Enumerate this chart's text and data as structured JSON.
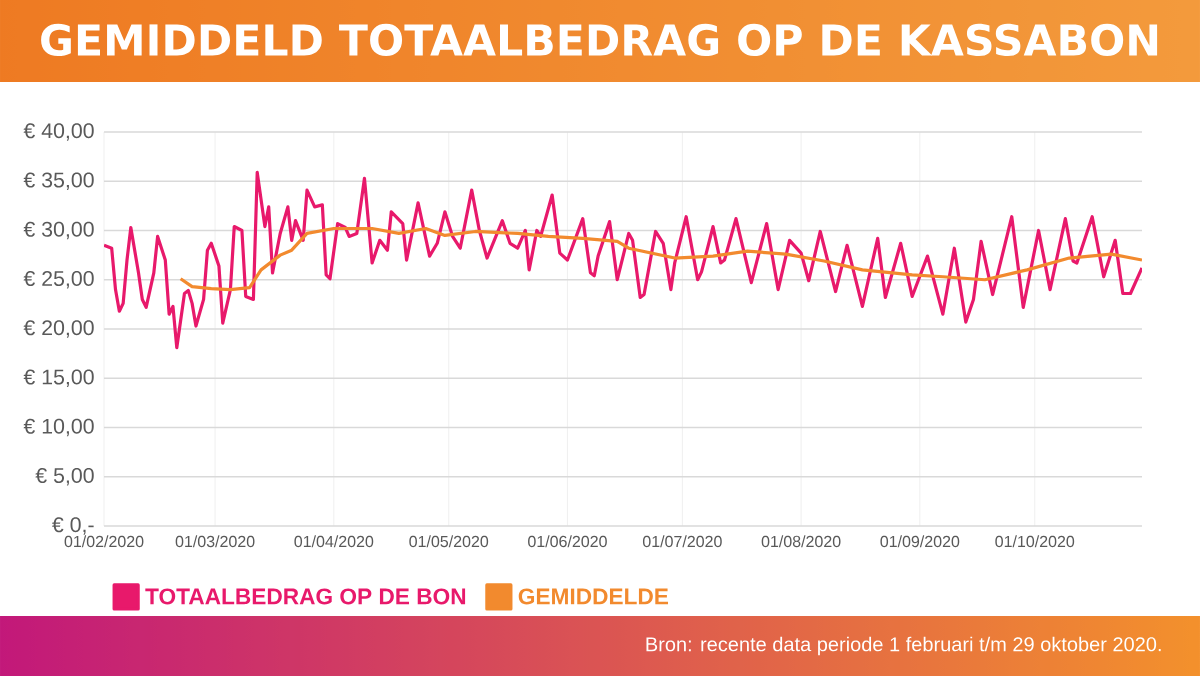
{
  "chart_data": {
    "type": "line",
    "title": "GEMIDDELD TOTAALBEDRAG OP DE KASSABON",
    "xlim": [
      "2020-02-01",
      "2020-10-29"
    ],
    "xticks": [
      {
        "value": "2020-02-01",
        "label": "01/02/2020"
      },
      {
        "value": "2020-03-01",
        "label": "01/03/2020"
      },
      {
        "value": "2020-04-01",
        "label": "01/04/2020"
      },
      {
        "value": "2020-05-01",
        "label": "01/05/2020"
      },
      {
        "value": "2020-06-01",
        "label": "01/06/2020"
      },
      {
        "value": "2020-07-01",
        "label": "01/07/2020"
      },
      {
        "value": "2020-08-01",
        "label": "01/08/2020"
      },
      {
        "value": "2020-09-01",
        "label": "01/09/2020"
      },
      {
        "value": "2020-10-01",
        "label": "01/10/2020"
      }
    ],
    "ylim": [
      0,
      40
    ],
    "yticks": [
      {
        "value": 0,
        "label": "€ 0,-"
      },
      {
        "value": 5,
        "label": "€ 5,00"
      },
      {
        "value": 10,
        "label": "€ 10,00"
      },
      {
        "value": 15,
        "label": "€ 15,00"
      },
      {
        "value": 20,
        "label": "€ 20,00"
      },
      {
        "value": 25,
        "label": "€ 25,00"
      },
      {
        "value": 30,
        "label": "€ 30,00"
      },
      {
        "value": 35,
        "label": "€ 35,00"
      },
      {
        "value": 40,
        "label": "€ 40,00"
      }
    ],
    "grid": true,
    "legend": "bottom",
    "marker": "none",
    "line_style": "solid",
    "annotations": [
      "Bron:  recente data periode 1 februari t/m 29 oktober 2020."
    ],
    "series": [
      {
        "name": "TOTAALBEDRAG OP DE BON",
        "color": "#e8196b",
        "x": [
          "2020-02-01",
          "2020-02-03",
          "2020-02-04",
          "2020-02-05",
          "2020-02-06",
          "2020-02-07",
          "2020-02-08",
          "2020-02-10",
          "2020-02-11",
          "2020-02-12",
          "2020-02-14",
          "2020-02-15",
          "2020-02-17",
          "2020-02-18",
          "2020-02-19",
          "2020-02-20",
          "2020-02-22",
          "2020-02-23",
          "2020-02-24",
          "2020-02-25",
          "2020-02-27",
          "2020-02-28",
          "2020-02-29",
          "2020-03-02",
          "2020-03-03",
          "2020-03-05",
          "2020-03-06",
          "2020-03-08",
          "2020-03-09",
          "2020-03-11",
          "2020-03-12",
          "2020-03-14",
          "2020-03-15",
          "2020-03-16",
          "2020-03-18",
          "2020-03-20",
          "2020-03-21",
          "2020-03-22",
          "2020-03-24",
          "2020-03-25",
          "2020-03-27",
          "2020-03-29",
          "2020-03-30",
          "2020-03-31",
          "2020-04-02",
          "2020-04-04",
          "2020-04-05",
          "2020-04-07",
          "2020-04-09",
          "2020-04-11",
          "2020-04-13",
          "2020-04-15",
          "2020-04-16",
          "2020-04-19",
          "2020-04-20",
          "2020-04-23",
          "2020-04-26",
          "2020-04-28",
          "2020-04-30",
          "2020-05-02",
          "2020-05-04",
          "2020-05-07",
          "2020-05-09",
          "2020-05-11",
          "2020-05-15",
          "2020-05-17",
          "2020-05-19",
          "2020-05-21",
          "2020-05-22",
          "2020-05-24",
          "2020-05-25",
          "2020-05-28",
          "2020-05-30",
          "2020-06-01",
          "2020-06-05",
          "2020-06-07",
          "2020-06-08",
          "2020-06-09",
          "2020-06-12",
          "2020-06-14",
          "2020-06-17",
          "2020-06-18",
          "2020-06-20",
          "2020-06-21",
          "2020-06-24",
          "2020-06-26",
          "2020-06-28",
          "2020-06-29",
          "2020-07-02",
          "2020-07-05",
          "2020-07-06",
          "2020-07-09",
          "2020-07-11",
          "2020-07-12",
          "2020-07-15",
          "2020-07-19",
          "2020-07-23",
          "2020-07-26",
          "2020-07-29",
          "2020-08-01",
          "2020-08-03",
          "2020-08-06",
          "2020-08-10",
          "2020-08-13",
          "2020-08-17",
          "2020-08-21",
          "2020-08-23",
          "2020-08-27",
          "2020-08-30",
          "2020-09-03",
          "2020-09-07",
          "2020-09-10",
          "2020-09-13",
          "2020-09-15",
          "2020-09-17",
          "2020-09-20",
          "2020-09-25",
          "2020-09-28",
          "2020-10-02",
          "2020-10-05",
          "2020-10-09",
          "2020-10-11",
          "2020-10-12",
          "2020-10-16",
          "2020-10-19",
          "2020-10-22",
          "2020-10-24",
          "2020-10-26",
          "2020-10-29"
        ],
        "values": [
          28.5,
          28.2,
          24,
          21.8,
          22.6,
          27,
          30.3,
          25.7,
          23,
          22.2,
          25.7,
          29.4,
          27,
          21.5,
          22.3,
          18.1,
          23.6,
          23.9,
          22.6,
          20.3,
          23,
          28,
          28.7,
          26.4,
          20.6,
          24,
          30.4,
          30,
          23.3,
          23,
          35.9,
          30.4,
          32.4,
          25.7,
          29.7,
          32.4,
          29,
          31,
          29,
          34.1,
          32.4,
          32.6,
          25.5,
          25.1,
          30.7,
          30.3,
          29.4,
          29.7,
          35.3,
          26.7,
          29,
          28,
          31.9,
          30.7,
          27,
          32.8,
          27.4,
          28.7,
          31.9,
          29.4,
          28.2,
          34.1,
          30,
          27.2,
          31,
          28.7,
          28.2,
          30,
          26,
          30,
          29.4,
          33.6,
          27.7,
          27,
          31.2,
          25.7,
          25.4,
          27.4,
          30.9,
          25.0,
          29.7,
          29,
          23.2,
          23.5,
          29.9,
          28.7,
          24,
          26.7,
          31.4,
          25,
          25.8,
          30.4,
          26.7,
          27,
          31.2,
          24.7,
          30.7,
          24,
          29,
          27.7,
          24.9,
          29.9,
          23.8,
          28.5,
          22.3,
          29.2,
          23.2,
          28.7,
          23.3,
          27.4,
          21.5,
          28.2,
          20.7,
          23,
          28.9,
          23.5,
          31.4,
          22.2,
          30,
          24,
          31.2,
          26.9,
          26.7,
          31.4,
          25.3,
          29,
          23.6,
          23.6,
          26.2
        ]
      },
      {
        "name": "GEMIDDELDE",
        "color": "#f28a2e",
        "x": [
          "2020-02-21",
          "2020-02-24",
          "2020-02-29",
          "2020-03-05",
          "2020-03-10",
          "2020-03-13",
          "2020-03-18",
          "2020-03-21",
          "2020-03-25",
          "2020-04-01",
          "2020-04-11",
          "2020-04-18",
          "2020-04-25",
          "2020-04-30",
          "2020-05-08",
          "2020-05-19",
          "2020-05-27",
          "2020-06-05",
          "2020-06-14",
          "2020-06-17",
          "2020-06-29",
          "2020-07-09",
          "2020-07-18",
          "2020-07-28",
          "2020-08-07",
          "2020-08-17",
          "2020-08-30",
          "2020-09-07",
          "2020-09-18",
          "2020-09-29",
          "2020-10-10",
          "2020-10-21",
          "2020-10-29"
        ],
        "values": [
          25.1,
          24.3,
          24.1,
          24,
          24.2,
          26,
          27.5,
          28,
          29.7,
          30.2,
          30.2,
          29.7,
          30.2,
          29.5,
          29.9,
          29.7,
          29.4,
          29.2,
          28.9,
          28.2,
          27.2,
          27.4,
          27.9,
          27.6,
          26.9,
          26,
          25.5,
          25.3,
          25,
          26,
          27.2,
          27.6,
          27
        ]
      }
    ]
  }
}
